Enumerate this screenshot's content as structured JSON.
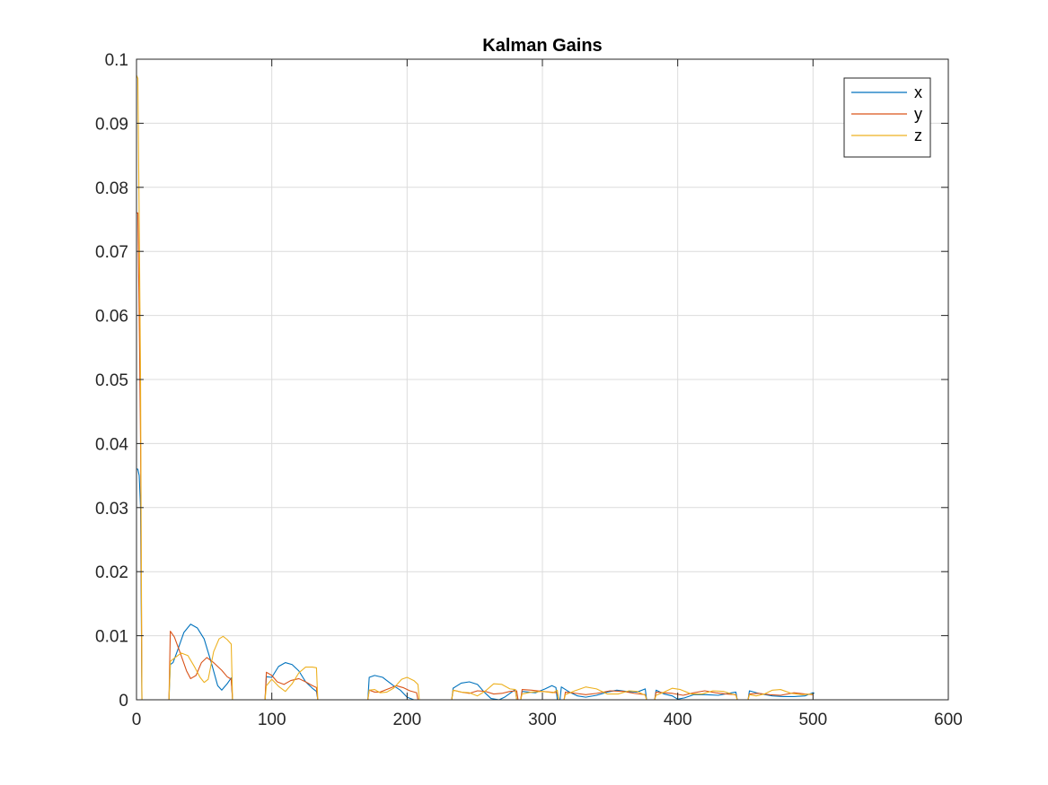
{
  "chart_data": {
    "type": "line",
    "title": "Kalman Gains",
    "xlabel": "",
    "ylabel": "",
    "xlim": [
      0,
      600
    ],
    "ylim": [
      0,
      0.1
    ],
    "xticks": [
      "0",
      "100",
      "200",
      "300",
      "400",
      "500",
      "600"
    ],
    "yticks": [
      "0",
      "0.01",
      "0.02",
      "0.03",
      "0.04",
      "0.05",
      "0.06",
      "0.07",
      "0.08",
      "0.09",
      "0.1"
    ],
    "grid": true,
    "legend_position": "top-right",
    "series": [
      {
        "name": "x",
        "color": "#0072bd",
        "points": [
          [
            0,
            0.036
          ],
          [
            1,
            0.036
          ],
          [
            2,
            0.035
          ],
          [
            3,
            0.03
          ],
          [
            4,
            0
          ],
          [
            24,
            0
          ],
          [
            25,
            0.0055
          ],
          [
            27,
            0.0058
          ],
          [
            30,
            0.0075
          ],
          [
            35,
            0.0105
          ],
          [
            40,
            0.0118
          ],
          [
            45,
            0.0112
          ],
          [
            50,
            0.0095
          ],
          [
            55,
            0.006
          ],
          [
            60,
            0.0022
          ],
          [
            63,
            0.0015
          ],
          [
            67,
            0.0025
          ],
          [
            70,
            0.0034
          ],
          [
            71,
            0
          ],
          [
            95,
            0
          ],
          [
            96,
            0.0036
          ],
          [
            100,
            0.0035
          ],
          [
            105,
            0.0052
          ],
          [
            110,
            0.0058
          ],
          [
            115,
            0.0055
          ],
          [
            120,
            0.0045
          ],
          [
            125,
            0.0028
          ],
          [
            130,
            0.0018
          ],
          [
            133,
            0.0013
          ],
          [
            134,
            0
          ],
          [
            171,
            0
          ],
          [
            172,
            0.0035
          ],
          [
            176,
            0.0038
          ],
          [
            182,
            0.0035
          ],
          [
            185,
            0.003
          ],
          [
            190,
            0.0022
          ],
          [
            195,
            0.0015
          ],
          [
            200,
            0.0004
          ],
          [
            205,
            0
          ],
          [
            233,
            0
          ],
          [
            234,
            0.0018
          ],
          [
            240,
            0.0026
          ],
          [
            246,
            0.0028
          ],
          [
            252,
            0.0024
          ],
          [
            257,
            0.0012
          ],
          [
            262,
            0.0002
          ],
          [
            268,
            0
          ],
          [
            272,
            0.0004
          ],
          [
            278,
            0.0013
          ],
          [
            280,
            0.0016
          ],
          [
            281,
            0
          ],
          [
            284,
            0
          ],
          [
            285,
            0.0013
          ],
          [
            290,
            0.0012
          ],
          [
            295,
            0.0011
          ],
          [
            302,
            0.0017
          ],
          [
            307,
            0.0022
          ],
          [
            310,
            0.0019
          ],
          [
            311,
            0
          ],
          [
            313,
            0
          ],
          [
            314,
            0.002
          ],
          [
            320,
            0.0012
          ],
          [
            326,
            0.0006
          ],
          [
            332,
            0.0004
          ],
          [
            340,
            0.0007
          ],
          [
            348,
            0.0012
          ],
          [
            355,
            0.0015
          ],
          [
            362,
            0.0013
          ],
          [
            370,
            0.0012
          ],
          [
            376,
            0.0017
          ],
          [
            377,
            0
          ],
          [
            383,
            0
          ],
          [
            384,
            0.0015
          ],
          [
            390,
            0.0009
          ],
          [
            396,
            0.0006
          ],
          [
            400,
            0.0001
          ],
          [
            405,
            0.0003
          ],
          [
            412,
            0.0008
          ],
          [
            420,
            0.0008
          ],
          [
            430,
            0.0007
          ],
          [
            440,
            0.0011
          ],
          [
            443,
            0.0012
          ],
          [
            444,
            0
          ],
          [
            452,
            0
          ],
          [
            453,
            0.0014
          ],
          [
            458,
            0.0011
          ],
          [
            462,
            0.0009
          ],
          [
            470,
            0.0006
          ],
          [
            478,
            0.0005
          ],
          [
            486,
            0.0005
          ],
          [
            494,
            0.0006
          ],
          [
            500,
            0.0011
          ],
          [
            501,
            0.001
          ]
        ]
      },
      {
        "name": "y",
        "color": "#d95319",
        "points": [
          [
            0,
            0.076
          ],
          [
            1,
            0.076
          ],
          [
            2,
            0.06
          ],
          [
            3,
            0.04
          ],
          [
            4,
            0
          ],
          [
            24,
            0
          ],
          [
            25,
            0.0107
          ],
          [
            28,
            0.0098
          ],
          [
            32,
            0.0075
          ],
          [
            37,
            0.0045
          ],
          [
            40,
            0.0033
          ],
          [
            44,
            0.0038
          ],
          [
            48,
            0.0058
          ],
          [
            52,
            0.0066
          ],
          [
            57,
            0.0058
          ],
          [
            63,
            0.0046
          ],
          [
            67,
            0.0036
          ],
          [
            70,
            0.0032
          ],
          [
            71,
            0
          ],
          [
            95,
            0
          ],
          [
            96,
            0.0043
          ],
          [
            100,
            0.0038
          ],
          [
            104,
            0.0028
          ],
          [
            109,
            0.0024
          ],
          [
            114,
            0.003
          ],
          [
            120,
            0.0033
          ],
          [
            125,
            0.0028
          ],
          [
            130,
            0.0022
          ],
          [
            133,
            0.0019
          ],
          [
            134,
            0
          ],
          [
            171,
            0
          ],
          [
            172,
            0.0015
          ],
          [
            176,
            0.0012
          ],
          [
            180,
            0.0012
          ],
          [
            186,
            0.0017
          ],
          [
            192,
            0.0022
          ],
          [
            197,
            0.0019
          ],
          [
            202,
            0.0014
          ],
          [
            207,
            0.0011
          ],
          [
            208,
            0
          ],
          [
            233,
            0
          ],
          [
            234,
            0.0015
          ],
          [
            240,
            0.0012
          ],
          [
            246,
            0.001
          ],
          [
            252,
            0.0014
          ],
          [
            258,
            0.0013
          ],
          [
            264,
            0.0009
          ],
          [
            270,
            0.001
          ],
          [
            276,
            0.0013
          ],
          [
            281,
            0.0014
          ],
          [
            282,
            0
          ],
          [
            284,
            0
          ],
          [
            285,
            0.0016
          ],
          [
            292,
            0.0015
          ],
          [
            300,
            0.0013
          ],
          [
            306,
            0.0012
          ],
          [
            311,
            0.0011
          ],
          [
            312,
            0
          ],
          [
            316,
            0
          ],
          [
            317,
            0.0012
          ],
          [
            325,
            0.001
          ],
          [
            332,
            0.0008
          ],
          [
            340,
            0.001
          ],
          [
            350,
            0.0014
          ],
          [
            360,
            0.0013
          ],
          [
            368,
            0.001
          ],
          [
            376,
            0.0008
          ],
          [
            377,
            0
          ],
          [
            383,
            0
          ],
          [
            384,
            0.0012
          ],
          [
            390,
            0.0011
          ],
          [
            396,
            0.001
          ],
          [
            404,
            0.0007
          ],
          [
            412,
            0.0011
          ],
          [
            420,
            0.0014
          ],
          [
            428,
            0.0011
          ],
          [
            436,
            0.0009
          ],
          [
            443,
            0.0008
          ],
          [
            444,
            0
          ],
          [
            452,
            0
          ],
          [
            453,
            0.0009
          ],
          [
            460,
            0.001
          ],
          [
            468,
            0.0008
          ],
          [
            476,
            0.0007
          ],
          [
            486,
            0.0011
          ],
          [
            494,
            0.0009
          ],
          [
            500,
            0.0008
          ]
        ]
      },
      {
        "name": "z",
        "color": "#edb120",
        "points": [
          [
            0,
            0.0975
          ],
          [
            1,
            0.097
          ],
          [
            2,
            0.075
          ],
          [
            3,
            0.05
          ],
          [
            4,
            0
          ],
          [
            24,
            0
          ],
          [
            25,
            0.006
          ],
          [
            28,
            0.0065
          ],
          [
            33,
            0.0073
          ],
          [
            38,
            0.0069
          ],
          [
            43,
            0.0051
          ],
          [
            47,
            0.0035
          ],
          [
            50,
            0.0027
          ],
          [
            53,
            0.0032
          ],
          [
            57,
            0.0075
          ],
          [
            61,
            0.0095
          ],
          [
            64,
            0.0099
          ],
          [
            67,
            0.0094
          ],
          [
            70,
            0.0087
          ],
          [
            71,
            0
          ],
          [
            95,
            0
          ],
          [
            96,
            0.0022
          ],
          [
            100,
            0.0032
          ],
          [
            105,
            0.0021
          ],
          [
            110,
            0.0013
          ],
          [
            115,
            0.0025
          ],
          [
            120,
            0.0042
          ],
          [
            125,
            0.0051
          ],
          [
            130,
            0.0051
          ],
          [
            133,
            0.005
          ],
          [
            134,
            0
          ],
          [
            171,
            0
          ],
          [
            172,
            0.0015
          ],
          [
            176,
            0.0016
          ],
          [
            180,
            0.0011
          ],
          [
            185,
            0.0012
          ],
          [
            190,
            0.0018
          ],
          [
            196,
            0.0032
          ],
          [
            200,
            0.0035
          ],
          [
            205,
            0.003
          ],
          [
            208,
            0.0024
          ],
          [
            209,
            0
          ],
          [
            233,
            0
          ],
          [
            234,
            0.0015
          ],
          [
            240,
            0.0012
          ],
          [
            246,
            0.0011
          ],
          [
            252,
            0.0006
          ],
          [
            258,
            0.0014
          ],
          [
            264,
            0.0025
          ],
          [
            270,
            0.0024
          ],
          [
            276,
            0.0017
          ],
          [
            280,
            0.0016
          ],
          [
            281,
            0
          ],
          [
            284,
            0
          ],
          [
            285,
            0.0009
          ],
          [
            292,
            0.0012
          ],
          [
            300,
            0.0013
          ],
          [
            308,
            0.0011
          ],
          [
            311,
            0.0015
          ],
          [
            312,
            0
          ],
          [
            316,
            0
          ],
          [
            317,
            0.0008
          ],
          [
            324,
            0.0014
          ],
          [
            332,
            0.002
          ],
          [
            340,
            0.0017
          ],
          [
            348,
            0.0009
          ],
          [
            356,
            0.0009
          ],
          [
            364,
            0.0014
          ],
          [
            370,
            0.0013
          ],
          [
            376,
            0.0007
          ],
          [
            377,
            0
          ],
          [
            383,
            0
          ],
          [
            384,
            0.0007
          ],
          [
            390,
            0.0012
          ],
          [
            396,
            0.0018
          ],
          [
            402,
            0.0016
          ],
          [
            410,
            0.0009
          ],
          [
            418,
            0.0009
          ],
          [
            426,
            0.0014
          ],
          [
            434,
            0.0013
          ],
          [
            443,
            0.0007
          ],
          [
            444,
            0
          ],
          [
            452,
            0
          ],
          [
            453,
            0.0008
          ],
          [
            458,
            0.0006
          ],
          [
            464,
            0.0009
          ],
          [
            470,
            0.0015
          ],
          [
            476,
            0.0016
          ],
          [
            484,
            0.001
          ],
          [
            492,
            0.0008
          ],
          [
            500,
            0.0009
          ]
        ]
      }
    ]
  }
}
